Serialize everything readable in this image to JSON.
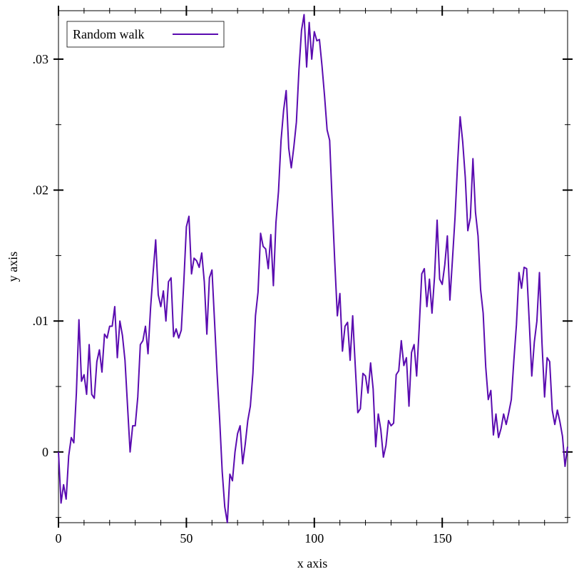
{
  "chart_data": {
    "type": "line",
    "xlabel": "x axis",
    "ylabel": "y axis",
    "x": [
      0,
      1,
      2,
      3,
      4,
      5,
      6,
      7,
      8,
      9,
      10,
      11,
      12,
      13,
      14,
      15,
      16,
      17,
      18,
      19,
      20,
      21,
      22,
      23,
      24,
      25,
      26,
      27,
      28,
      29,
      30,
      31,
      32,
      33,
      34,
      35,
      36,
      37,
      38,
      39,
      40,
      41,
      42,
      43,
      44,
      45,
      46,
      47,
      48,
      49,
      50,
      51,
      52,
      53,
      54,
      55,
      56,
      57,
      58,
      59,
      60,
      61,
      62,
      63,
      64,
      65,
      66,
      67,
      68,
      69,
      70,
      71,
      72,
      73,
      74,
      75,
      76,
      77,
      78,
      79,
      80,
      81,
      82,
      83,
      84,
      85,
      86,
      87,
      88,
      89,
      90,
      91,
      92,
      93,
      94,
      95,
      96,
      97,
      98,
      99,
      100,
      101,
      102,
      103,
      104,
      105,
      106,
      107,
      108,
      109,
      110,
      111,
      112,
      113,
      114,
      115,
      116,
      117,
      118,
      119,
      120,
      121,
      122,
      123,
      124,
      125,
      126,
      127,
      128,
      129,
      130,
      131,
      132,
      133,
      134,
      135,
      136,
      137,
      138,
      139,
      140,
      141,
      142,
      143,
      144,
      145,
      146,
      147,
      148,
      149,
      150,
      151,
      152,
      153,
      154,
      155,
      156,
      157,
      158,
      159,
      160,
      161,
      162,
      163,
      164,
      165,
      166,
      167,
      168,
      169,
      170,
      171,
      172,
      173,
      174,
      175,
      176,
      177,
      178,
      179,
      180,
      181,
      182,
      183,
      184,
      185,
      186,
      187,
      188,
      189,
      190,
      191,
      192,
      193,
      194,
      195,
      196,
      197,
      198,
      199
    ],
    "series": [
      {
        "name": "Random walk",
        "color": "#5a0bb0",
        "values": [
          0,
          -0.0039,
          -0.0025,
          -0.0036,
          -0.0003,
          0.0011,
          0.0007,
          0.0045,
          0.0101,
          0.0054,
          0.0059,
          0.0044,
          0.0082,
          0.0044,
          0.0041,
          0.0069,
          0.0078,
          0.0061,
          0.009,
          0.0087,
          0.0096,
          0.0096,
          0.0111,
          0.0072,
          0.01,
          0.0089,
          0.007,
          0.0035,
          0,
          0.002,
          0.002,
          0.0042,
          0.0082,
          0.0085,
          0.0096,
          0.0075,
          0.011,
          0.0137,
          0.0162,
          0.012,
          0.0111,
          0.0123,
          0.01,
          0.013,
          0.0133,
          0.0088,
          0.0094,
          0.0087,
          0.0093,
          0.013,
          0.0172,
          0.018,
          0.0136,
          0.0148,
          0.0146,
          0.0141,
          0.0152,
          0.013,
          0.009,
          0.0133,
          0.0139,
          0.01,
          0.006,
          0.0025,
          -0.0015,
          -0.0042,
          -0.0054,
          -0.0017,
          -0.0022,
          0,
          0.0014,
          0.002,
          -0.0009,
          0.0006,
          0.0024,
          0.0035,
          0.006,
          0.0104,
          0.0122,
          0.0167,
          0.0157,
          0.0155,
          0.014,
          0.0166,
          0.0127,
          0.0175,
          0.0199,
          0.0238,
          0.0261,
          0.0276,
          0.0232,
          0.0217,
          0.0233,
          0.0252,
          0.0292,
          0.0322,
          0.0334,
          0.0294,
          0.0328,
          0.03,
          0.0321,
          0.0314,
          0.0315,
          0.0295,
          0.0272,
          0.0246,
          0.0238,
          0.019,
          0.0145,
          0.0104,
          0.0121,
          0.0077,
          0.0096,
          0.0099,
          0.007,
          0.0104,
          0.0066,
          0.003,
          0.0033,
          0.006,
          0.0058,
          0.0045,
          0.0068,
          0.0048,
          0.0004,
          0.0029,
          0.0017,
          -0.0004,
          0.0005,
          0.0024,
          0.002,
          0.0022,
          0.0059,
          0.0062,
          0.0085,
          0.0066,
          0.0072,
          0.0035,
          0.0076,
          0.0082,
          0.0058,
          0.0095,
          0.0136,
          0.014,
          0.0111,
          0.0132,
          0.0106,
          0.0134,
          0.0177,
          0.0132,
          0.0128,
          0.0143,
          0.0165,
          0.0116,
          0.0147,
          0.0179,
          0.022,
          0.0256,
          0.0237,
          0.021,
          0.0169,
          0.0179,
          0.0224,
          0.0183,
          0.0165,
          0.0124,
          0.0106,
          0.0065,
          0.004,
          0.0047,
          0.0013,
          0.0029,
          0.0011,
          0.0018,
          0.0029,
          0.0021,
          0.003,
          0.004,
          0.007,
          0.0097,
          0.0137,
          0.0125,
          0.0141,
          0.014,
          0.01,
          0.0058,
          0.0084,
          0.01,
          0.0137,
          0.0083,
          0.0042,
          0.0072,
          0.0069,
          0.0032,
          0.0021,
          0.0032,
          0.0023,
          0.0012,
          -0.0011,
          0.0004
        ]
      }
    ],
    "xlim": [
      0,
      199
    ],
    "ylim": [
      -0.0054,
      0.0337
    ],
    "xticks": [
      0,
      50,
      100,
      150
    ],
    "yticks": [
      0,
      {
        "value": 0.01,
        "label": ".01"
      },
      {
        "value": 0.02,
        "label": ".02"
      },
      {
        "value": 0.03,
        "label": ".03"
      }
    ],
    "xminorticks": [
      10,
      20,
      30,
      40,
      60,
      70,
      80,
      90,
      110,
      120,
      130,
      140,
      160,
      170,
      180,
      190
    ],
    "yminorticks": [
      -0.005,
      0.005,
      0.015,
      0.025
    ],
    "legend": "top-left"
  }
}
